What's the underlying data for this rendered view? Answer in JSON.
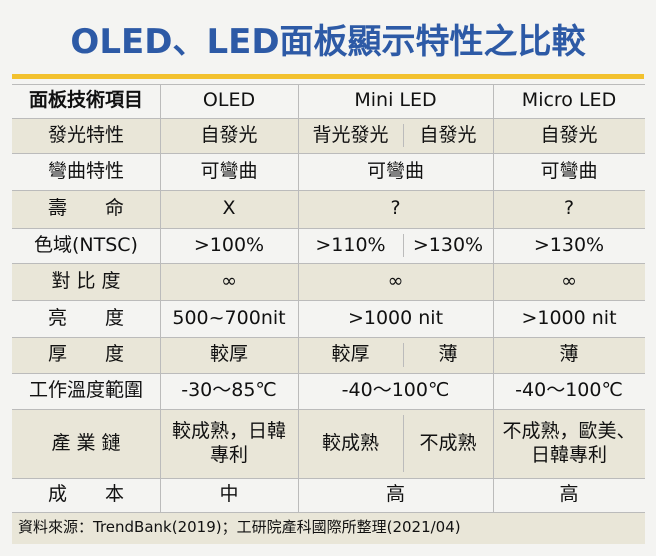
{
  "header": {
    "title": "OLED、LED面板顯示特性之比較"
  },
  "table": {
    "columns": [
      "面板技術項目",
      "OLED",
      "Mini LED",
      "Micro LED"
    ],
    "rows": [
      [
        "發光特性",
        "自發光",
        [
          "背光發光",
          "自發光"
        ],
        "自發光"
      ],
      [
        "彎曲特性",
        "可彎曲",
        "可彎曲",
        "可彎曲"
      ],
      [
        "壽　　命",
        "X",
        "?",
        "?"
      ],
      [
        "色域(NTSC)",
        ">100%",
        [
          ">110%",
          ">130%"
        ],
        ">130%"
      ],
      [
        "對 比 度",
        "∞",
        "∞",
        "∞"
      ],
      [
        "亮　　度",
        "500~700nit",
        ">1000 nit",
        ">1000 nit"
      ],
      [
        "厚　　度",
        "較厚",
        [
          "較厚",
          "薄"
        ],
        "薄"
      ],
      [
        "工作溫度範圍",
        "-30～85℃",
        "-40～100℃",
        "-40～100℃"
      ],
      [
        "產 業 鏈",
        "較成熟，日韓專利",
        [
          "較成熟",
          "不成熟"
        ],
        "不成熟，歐美、日韓專利"
      ],
      [
        "成　　本",
        "中",
        "高",
        "高"
      ]
    ]
  },
  "source": "資料來源：TrendBank(2019)；工研院產科國際所整理(2021/04)"
}
